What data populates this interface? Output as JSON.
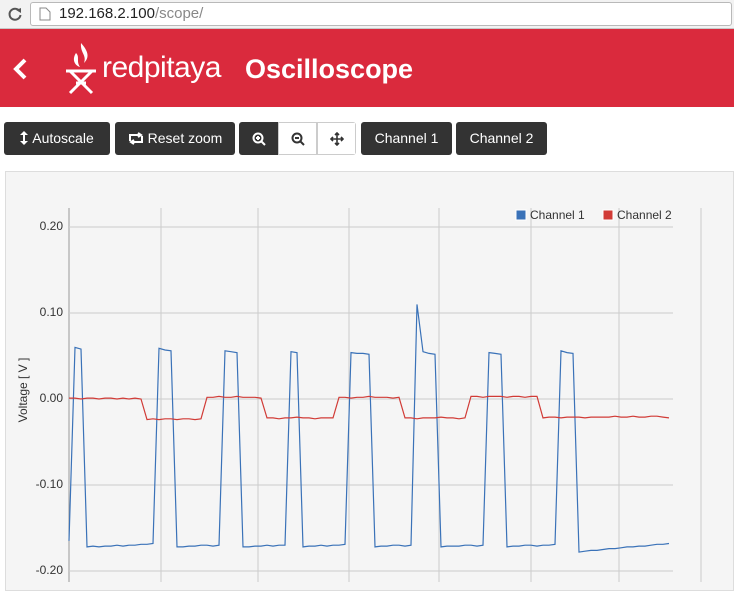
{
  "browser": {
    "url_host": "192.168.2.100",
    "url_path": "/scope/"
  },
  "header": {
    "logo": "redpitaya",
    "title": "Oscilloscope"
  },
  "toolbar": {
    "buttons": [
      "Autoscale",
      "Reset zoom",
      "Channel 1",
      "Channel 2"
    ]
  },
  "chart_data": {
    "type": "line",
    "y_label": "Voltage [ V ]",
    "ylim": [
      -0.2,
      0.2
    ],
    "yticks": [
      {
        "value": 0.2,
        "label": "0.20"
      },
      {
        "value": 0.1,
        "label": "0.10"
      },
      {
        "value": 0,
        "label": "0.00"
      },
      {
        "value": -0.1,
        "label": "-0.10"
      },
      {
        "value": -0.2,
        "label": "-0.20"
      }
    ],
    "grid": true,
    "legend": "top-right",
    "series": [
      {
        "name": "Channel 1",
        "color": "#3a72b8",
        "values": [
          -0.165,
          0.06,
          0.058,
          -0.172,
          -0.171,
          -0.172,
          -0.171,
          -0.171,
          -0.17,
          -0.171,
          -0.17,
          -0.17,
          -0.169,
          -0.169,
          -0.168,
          0.059,
          0.057,
          0.056,
          -0.172,
          -0.172,
          -0.171,
          -0.171,
          -0.17,
          -0.17,
          -0.171,
          -0.17,
          0.056,
          0.055,
          0.054,
          -0.172,
          -0.172,
          -0.171,
          -0.171,
          -0.17,
          -0.171,
          -0.17,
          -0.17,
          0.055,
          0.054,
          -0.172,
          -0.171,
          -0.171,
          -0.17,
          -0.171,
          -0.17,
          -0.17,
          -0.169,
          0.054,
          0.053,
          0.053,
          0.052,
          -0.172,
          -0.171,
          -0.171,
          -0.17,
          -0.17,
          -0.171,
          -0.17,
          0.11,
          0.055,
          0.053,
          0.052,
          -0.172,
          -0.171,
          -0.171,
          -0.171,
          -0.17,
          -0.17,
          -0.171,
          -0.17,
          0.054,
          0.053,
          0.052,
          -0.172,
          -0.171,
          -0.171,
          -0.17,
          -0.17,
          -0.171,
          -0.17,
          -0.17,
          -0.169,
          0.056,
          0.054,
          0.053,
          -0.178,
          -0.177,
          -0.176,
          -0.176,
          -0.175,
          -0.174,
          -0.174,
          -0.173,
          -0.172,
          -0.172,
          -0.171,
          -0.171,
          -0.17,
          -0.169,
          -0.169,
          -0.168
        ]
      },
      {
        "name": "Channel 2",
        "color": "#d13b36",
        "values": [
          0.001,
          0.001,
          0,
          0.001,
          0.001,
          0,
          0.001,
          0.001,
          0,
          0.001,
          0,
          0.001,
          0,
          -0.024,
          -0.023,
          -0.024,
          -0.023,
          -0.023,
          -0.024,
          -0.023,
          -0.023,
          -0.024,
          -0.023,
          0.002,
          0.002,
          0.003,
          0.002,
          0.002,
          0.003,
          0.002,
          0.002,
          0.002,
          0.001,
          -0.022,
          -0.022,
          -0.023,
          -0.022,
          -0.022,
          -0.021,
          -0.022,
          -0.022,
          -0.023,
          -0.022,
          -0.022,
          -0.022,
          0.002,
          0.002,
          0.001,
          0.002,
          0.002,
          0.003,
          0.002,
          0.002,
          0.002,
          0.001,
          0.002,
          -0.022,
          -0.022,
          -0.023,
          -0.022,
          -0.022,
          -0.022,
          -0.021,
          -0.022,
          -0.022,
          -0.023,
          -0.022,
          0.003,
          0.003,
          0.002,
          0.003,
          0.003,
          0.003,
          0.002,
          0.003,
          0.003,
          0.002,
          0.003,
          0.003,
          -0.022,
          -0.021,
          -0.021,
          -0.022,
          -0.021,
          -0.021,
          -0.021,
          -0.022,
          -0.021,
          -0.021,
          -0.021,
          -0.021,
          -0.02,
          -0.021,
          -0.021,
          -0.02,
          -0.021,
          -0.021,
          -0.02,
          -0.02,
          -0.021,
          -0.022
        ]
      }
    ]
  }
}
